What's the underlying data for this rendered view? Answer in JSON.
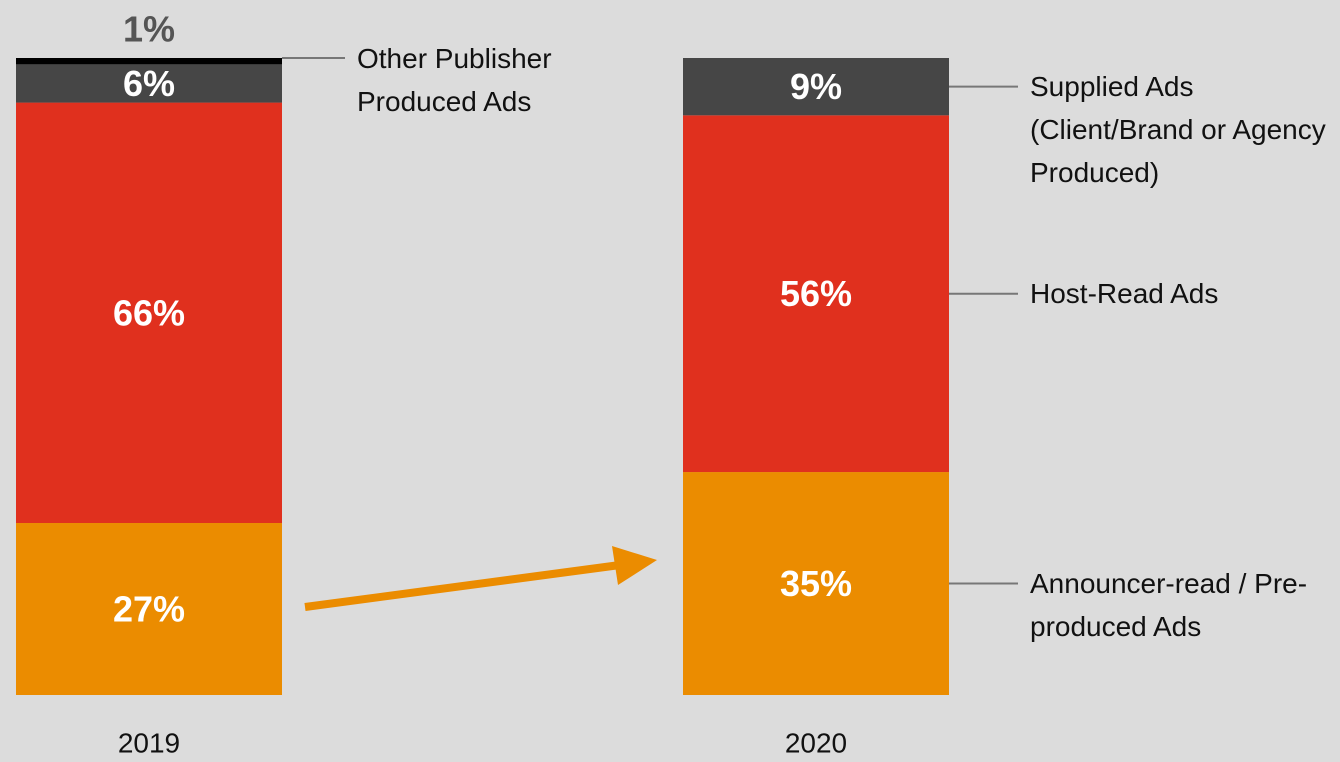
{
  "chart_data": {
    "type": "stacked-bar",
    "categories": [
      "2019",
      "2020"
    ],
    "ylim": [
      0,
      100
    ],
    "series": [
      {
        "name": "Announcer-read / Pre-produced Ads",
        "color": "#eb8c00",
        "values": [
          27,
          35
        ],
        "value_labels": [
          "27%",
          "35%"
        ]
      },
      {
        "name": "Host-Read Ads",
        "color": "#e0301e",
        "values": [
          66,
          56
        ],
        "value_labels": [
          "66%",
          "56%"
        ]
      },
      {
        "name": "Supplied Ads (Client/Brand or Agency Produced)",
        "color": "#464646",
        "values": [
          6,
          9
        ],
        "value_labels": [
          "6%",
          "9%"
        ]
      },
      {
        "name": "Other Publisher Produced Ads",
        "color": "#000000",
        "values": [
          1,
          null
        ],
        "value_labels": [
          "1%",
          null
        ]
      }
    ]
  }
}
